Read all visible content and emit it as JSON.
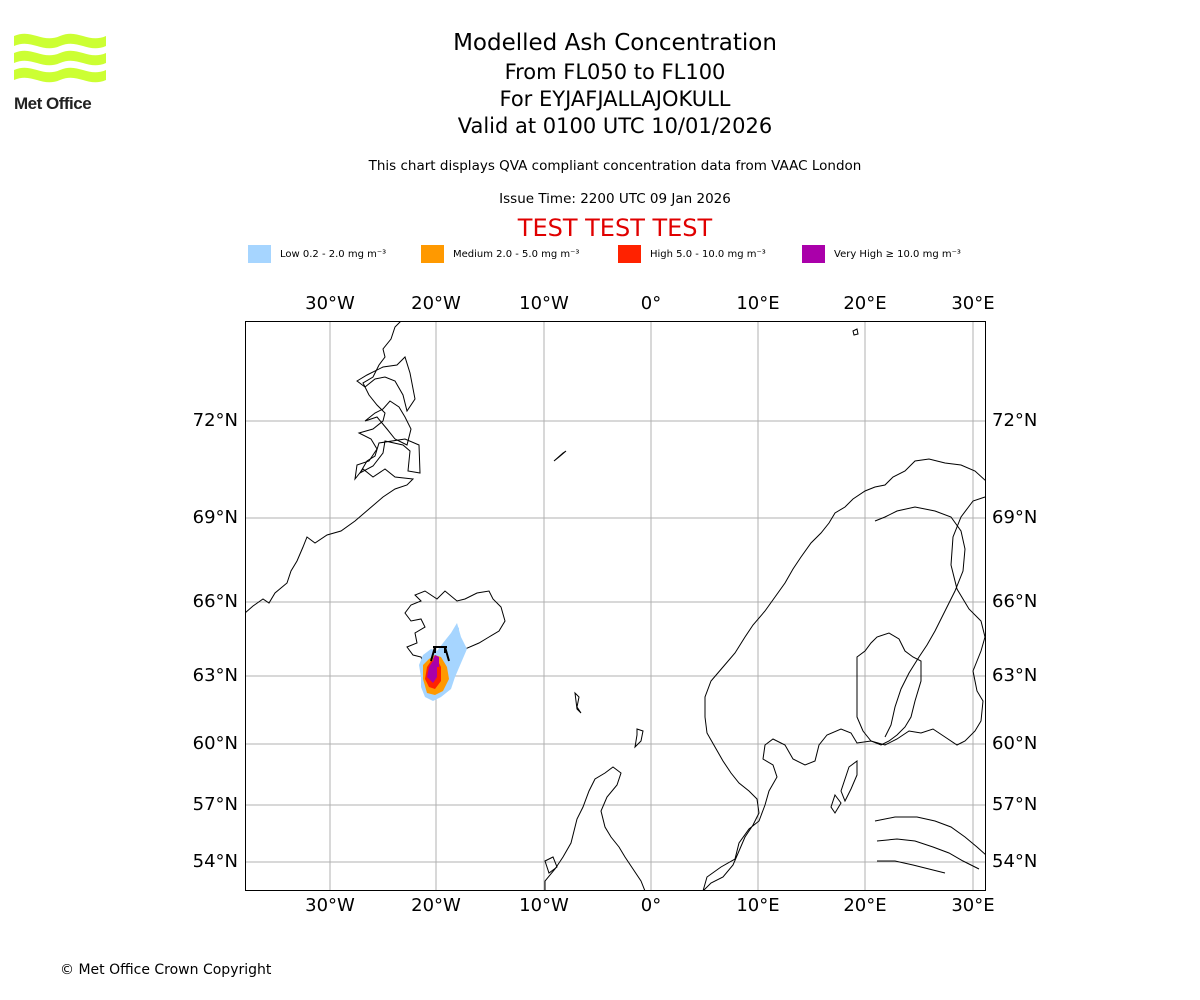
{
  "header": {
    "logo_text": "Met Office",
    "title": "Modelled Ash Concentration",
    "flight_levels": "From FL050 to FL100",
    "volcano": "For EYJAFJALLAJOKULL",
    "valid_time": "Valid at 0100 UTC 10/01/2026",
    "description": "This chart displays QVA compliant concentration data from VAAC London",
    "issue_time": "Issue Time: 2200 UTC 09 Jan 2026",
    "test_banner": "TEST TEST TEST"
  },
  "legend": [
    {
      "label": "Low 0.2 - 2.0 mg m⁻³",
      "color": "#a6d5ff"
    },
    {
      "label": "Medium 2.0 - 5.0 mg m⁻³",
      "color": "#ff9900"
    },
    {
      "label": "High 5.0 - 10.0 mg m⁻³",
      "color": "#ff2200"
    },
    {
      "label": "Very High  ≥  10.0 mg m⁻³",
      "color": "#aa00aa"
    }
  ],
  "axes": {
    "lon_labels": [
      "30°W",
      "20°W",
      "10°W",
      "0°",
      "10°E",
      "20°E",
      "30°E"
    ],
    "lat_labels": [
      "72°N",
      "69°N",
      "66°N",
      "63°N",
      "60°N",
      "57°N",
      "54°N"
    ]
  },
  "footer": {
    "copyright": "© Met Office Crown Copyright"
  },
  "colors": {
    "logo": "#ccff33",
    "grid": "#b0b0b0",
    "test": "#e00000"
  }
}
